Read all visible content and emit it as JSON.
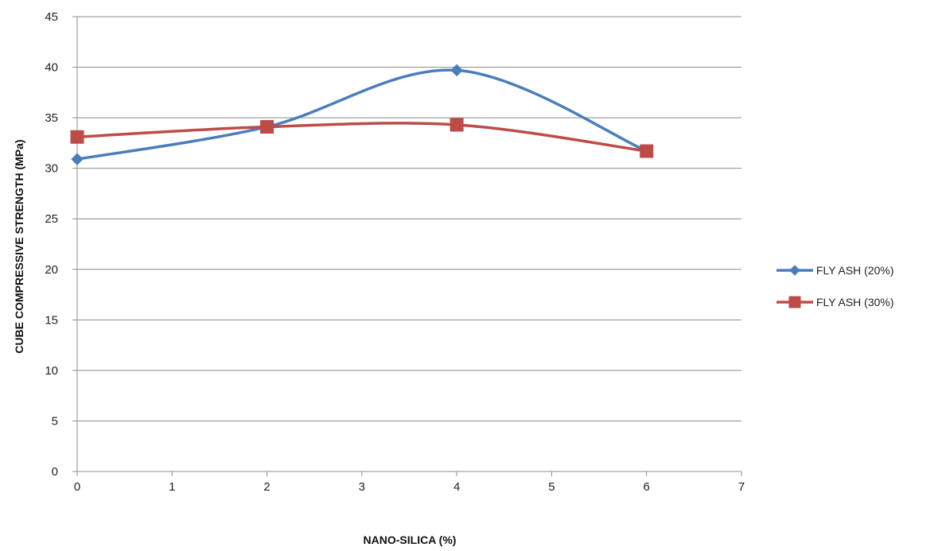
{
  "chart_data": {
    "type": "line",
    "title": "",
    "xlabel": "NANO-SILICA (%)",
    "ylabel": "CUBE COMPRESSIVE STRENGTH  (MPa)",
    "xlim": [
      0,
      7
    ],
    "ylim": [
      0,
      45
    ],
    "x_ticks": [
      "0",
      "1",
      "2",
      "3",
      "4",
      "5",
      "6",
      "7"
    ],
    "y_ticks": [
      "0",
      "5",
      "10",
      "15",
      "20",
      "25",
      "30",
      "35",
      "40",
      "45"
    ],
    "grid": "horizontal",
    "smoothed": true,
    "legend_position": "right",
    "series": [
      {
        "name": "FLY ASH (20%)",
        "marker": "diamond",
        "color": "#4a7ebb",
        "x": [
          0,
          2,
          4,
          6
        ],
        "y": [
          30.9,
          34.1,
          39.7,
          31.7
        ]
      },
      {
        "name": "FLY ASH (30%)",
        "marker": "square",
        "color": "#be4b48",
        "x": [
          0,
          2,
          4,
          6
        ],
        "y": [
          33.1,
          34.1,
          34.3,
          31.7
        ]
      }
    ]
  }
}
